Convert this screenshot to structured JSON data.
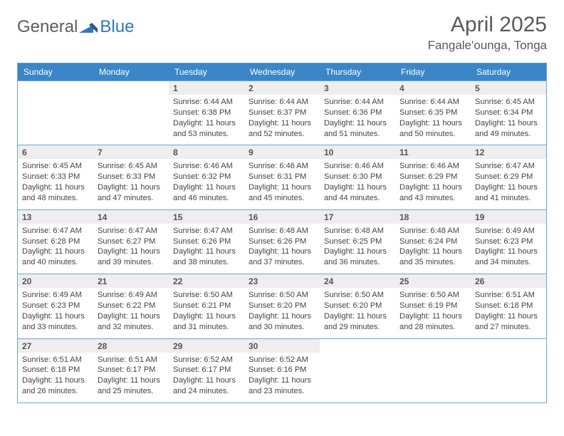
{
  "logo": {
    "general": "General",
    "blue": "Blue"
  },
  "title": "April 2025",
  "location": "Fangale'ounga, Tonga",
  "day_headers": [
    "Sunday",
    "Monday",
    "Tuesday",
    "Wednesday",
    "Thursday",
    "Friday",
    "Saturday"
  ],
  "header_bg": "#3a86c8",
  "header_fg": "#ffffff",
  "border_color": "#6ea3d4",
  "daynum_bg": "#eeeeee",
  "weeks": [
    [
      null,
      null,
      {
        "n": "1",
        "sr": "Sunrise: 6:44 AM",
        "ss": "Sunset: 6:38 PM",
        "dl": "Daylight: 11 hours and 53 minutes."
      },
      {
        "n": "2",
        "sr": "Sunrise: 6:44 AM",
        "ss": "Sunset: 6:37 PM",
        "dl": "Daylight: 11 hours and 52 minutes."
      },
      {
        "n": "3",
        "sr": "Sunrise: 6:44 AM",
        "ss": "Sunset: 6:36 PM",
        "dl": "Daylight: 11 hours and 51 minutes."
      },
      {
        "n": "4",
        "sr": "Sunrise: 6:44 AM",
        "ss": "Sunset: 6:35 PM",
        "dl": "Daylight: 11 hours and 50 minutes."
      },
      {
        "n": "5",
        "sr": "Sunrise: 6:45 AM",
        "ss": "Sunset: 6:34 PM",
        "dl": "Daylight: 11 hours and 49 minutes."
      }
    ],
    [
      {
        "n": "6",
        "sr": "Sunrise: 6:45 AM",
        "ss": "Sunset: 6:33 PM",
        "dl": "Daylight: 11 hours and 48 minutes."
      },
      {
        "n": "7",
        "sr": "Sunrise: 6:45 AM",
        "ss": "Sunset: 6:33 PM",
        "dl": "Daylight: 11 hours and 47 minutes."
      },
      {
        "n": "8",
        "sr": "Sunrise: 6:46 AM",
        "ss": "Sunset: 6:32 PM",
        "dl": "Daylight: 11 hours and 46 minutes."
      },
      {
        "n": "9",
        "sr": "Sunrise: 6:46 AM",
        "ss": "Sunset: 6:31 PM",
        "dl": "Daylight: 11 hours and 45 minutes."
      },
      {
        "n": "10",
        "sr": "Sunrise: 6:46 AM",
        "ss": "Sunset: 6:30 PM",
        "dl": "Daylight: 11 hours and 44 minutes."
      },
      {
        "n": "11",
        "sr": "Sunrise: 6:46 AM",
        "ss": "Sunset: 6:29 PM",
        "dl": "Daylight: 11 hours and 43 minutes."
      },
      {
        "n": "12",
        "sr": "Sunrise: 6:47 AM",
        "ss": "Sunset: 6:29 PM",
        "dl": "Daylight: 11 hours and 41 minutes."
      }
    ],
    [
      {
        "n": "13",
        "sr": "Sunrise: 6:47 AM",
        "ss": "Sunset: 6:28 PM",
        "dl": "Daylight: 11 hours and 40 minutes."
      },
      {
        "n": "14",
        "sr": "Sunrise: 6:47 AM",
        "ss": "Sunset: 6:27 PM",
        "dl": "Daylight: 11 hours and 39 minutes."
      },
      {
        "n": "15",
        "sr": "Sunrise: 6:47 AM",
        "ss": "Sunset: 6:26 PM",
        "dl": "Daylight: 11 hours and 38 minutes."
      },
      {
        "n": "16",
        "sr": "Sunrise: 6:48 AM",
        "ss": "Sunset: 6:26 PM",
        "dl": "Daylight: 11 hours and 37 minutes."
      },
      {
        "n": "17",
        "sr": "Sunrise: 6:48 AM",
        "ss": "Sunset: 6:25 PM",
        "dl": "Daylight: 11 hours and 36 minutes."
      },
      {
        "n": "18",
        "sr": "Sunrise: 6:48 AM",
        "ss": "Sunset: 6:24 PM",
        "dl": "Daylight: 11 hours and 35 minutes."
      },
      {
        "n": "19",
        "sr": "Sunrise: 6:49 AM",
        "ss": "Sunset: 6:23 PM",
        "dl": "Daylight: 11 hours and 34 minutes."
      }
    ],
    [
      {
        "n": "20",
        "sr": "Sunrise: 6:49 AM",
        "ss": "Sunset: 6:23 PM",
        "dl": "Daylight: 11 hours and 33 minutes."
      },
      {
        "n": "21",
        "sr": "Sunrise: 6:49 AM",
        "ss": "Sunset: 6:22 PM",
        "dl": "Daylight: 11 hours and 32 minutes."
      },
      {
        "n": "22",
        "sr": "Sunrise: 6:50 AM",
        "ss": "Sunset: 6:21 PM",
        "dl": "Daylight: 11 hours and 31 minutes."
      },
      {
        "n": "23",
        "sr": "Sunrise: 6:50 AM",
        "ss": "Sunset: 6:20 PM",
        "dl": "Daylight: 11 hours and 30 minutes."
      },
      {
        "n": "24",
        "sr": "Sunrise: 6:50 AM",
        "ss": "Sunset: 6:20 PM",
        "dl": "Daylight: 11 hours and 29 minutes."
      },
      {
        "n": "25",
        "sr": "Sunrise: 6:50 AM",
        "ss": "Sunset: 6:19 PM",
        "dl": "Daylight: 11 hours and 28 minutes."
      },
      {
        "n": "26",
        "sr": "Sunrise: 6:51 AM",
        "ss": "Sunset: 6:18 PM",
        "dl": "Daylight: 11 hours and 27 minutes."
      }
    ],
    [
      {
        "n": "27",
        "sr": "Sunrise: 6:51 AM",
        "ss": "Sunset: 6:18 PM",
        "dl": "Daylight: 11 hours and 26 minutes."
      },
      {
        "n": "28",
        "sr": "Sunrise: 6:51 AM",
        "ss": "Sunset: 6:17 PM",
        "dl": "Daylight: 11 hours and 25 minutes."
      },
      {
        "n": "29",
        "sr": "Sunrise: 6:52 AM",
        "ss": "Sunset: 6:17 PM",
        "dl": "Daylight: 11 hours and 24 minutes."
      },
      {
        "n": "30",
        "sr": "Sunrise: 6:52 AM",
        "ss": "Sunset: 6:16 PM",
        "dl": "Daylight: 11 hours and 23 minutes."
      },
      null,
      null,
      null
    ]
  ]
}
